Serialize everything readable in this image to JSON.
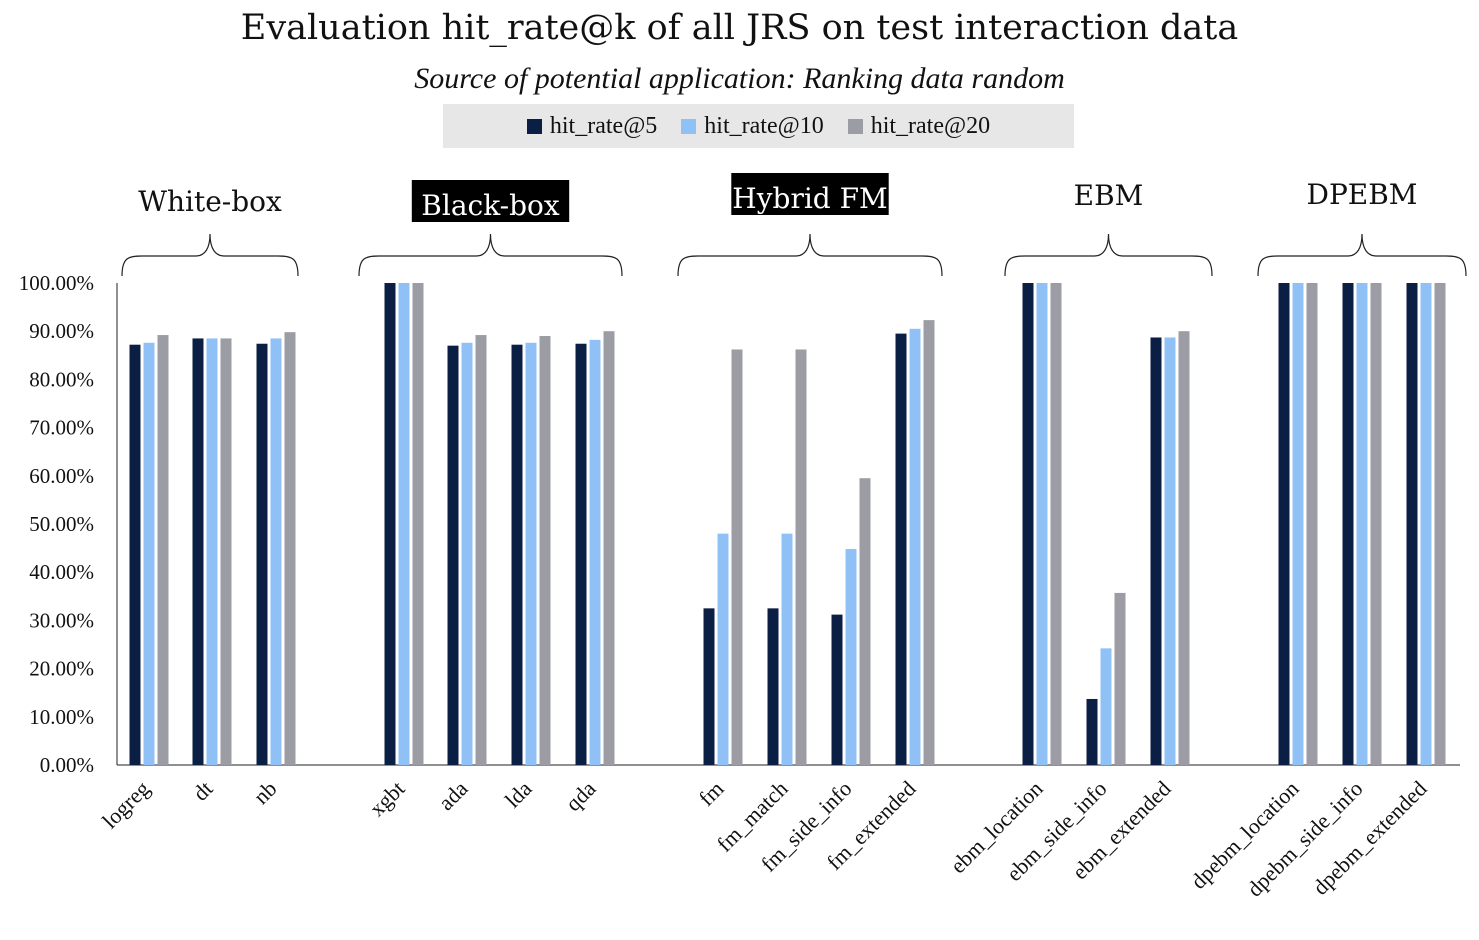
{
  "chart_data": {
    "type": "bar",
    "title": "Evaluation hit_rate@k of all JRS on test interaction data",
    "subtitle": "Source of potential application: Ranking data random",
    "legend_position": "top-center",
    "ylim": [
      0,
      100
    ],
    "yticks": [
      "0.00%",
      "10.00%",
      "20.00%",
      "30.00%",
      "40.00%",
      "50.00%",
      "60.00%",
      "70.00%",
      "80.00%",
      "90.00%",
      "100.00%"
    ],
    "grid": false,
    "categories": [
      "logreg",
      "dt",
      "nb",
      "xgbt",
      "ada",
      "lda",
      "qda",
      "fm",
      "fm_match",
      "fm_side_info",
      "fm_extended",
      "ebm_location",
      "ebm_side_info",
      "ebm_extended",
      "dpebm_location",
      "dpebm_side_info",
      "dpebm_extended"
    ],
    "groups": [
      {
        "label": "White-box",
        "highlight": false,
        "members": [
          "logreg",
          "dt",
          "nb"
        ]
      },
      {
        "label": "Black-box",
        "highlight": true,
        "members": [
          "xgbt",
          "ada",
          "lda",
          "qda"
        ]
      },
      {
        "label": "Hybrid FM",
        "highlight": true,
        "members": [
          "fm",
          "fm_match",
          "fm_side_info",
          "fm_extended"
        ]
      },
      {
        "label": "EBM",
        "highlight": false,
        "members": [
          "ebm_location",
          "ebm_side_info",
          "ebm_extended"
        ]
      },
      {
        "label": "DPEBM",
        "highlight": false,
        "members": [
          "dpebm_location",
          "dpebm_side_info",
          "dpebm_extended"
        ]
      }
    ],
    "series": [
      {
        "name": "hit_rate@5",
        "color": "#0b1f44",
        "values": [
          87.2,
          88.5,
          87.4,
          100,
          87.0,
          87.2,
          87.4,
          32.5,
          32.5,
          31.2,
          89.5,
          100,
          13.7,
          88.7,
          100,
          100,
          100
        ]
      },
      {
        "name": "hit_rate@10",
        "color": "#8fc1f7",
        "values": [
          87.6,
          88.5,
          88.5,
          100,
          87.6,
          87.6,
          88.2,
          48.0,
          48.0,
          44.8,
          90.5,
          100,
          24.2,
          88.7,
          100,
          100,
          100
        ]
      },
      {
        "name": "hit_rate@20",
        "color": "#9c9ca4",
        "values": [
          89.2,
          88.5,
          89.8,
          100,
          89.2,
          89.0,
          90.0,
          86.2,
          86.2,
          59.5,
          92.3,
          100,
          35.7,
          90.0,
          100,
          100,
          100
        ]
      }
    ]
  }
}
